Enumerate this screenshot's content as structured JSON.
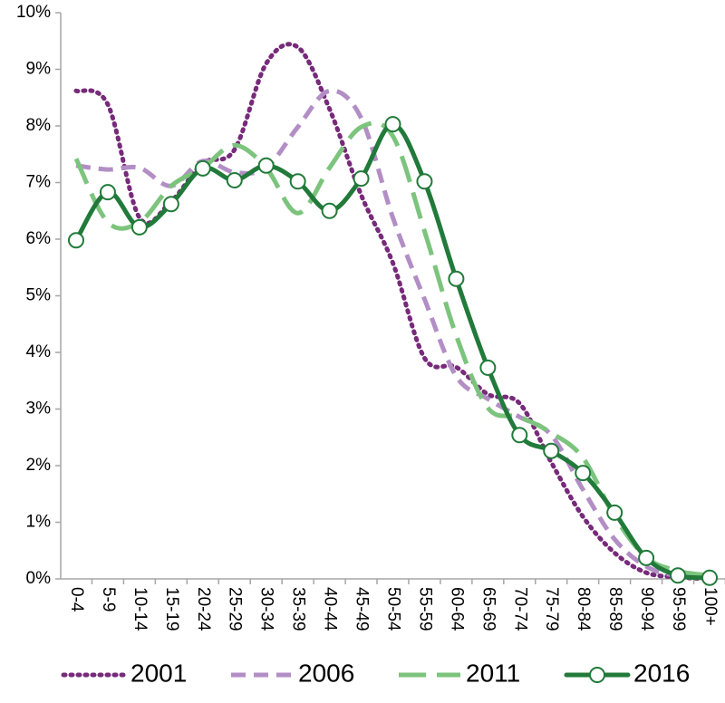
{
  "chart_data": {
    "type": "line",
    "categories": [
      "0-4",
      "5-9",
      "10-14",
      "15-19",
      "20-24",
      "25-29",
      "30-34",
      "35-39",
      "40-44",
      "45-49",
      "50-54",
      "55-59",
      "60-64",
      "65-69",
      "70-74",
      "75-79",
      "80-84",
      "85-89",
      "90-94",
      "95-99",
      "100+"
    ],
    "series": [
      {
        "name": "2001",
        "color": "#772a7a",
        "line_style": "dotted",
        "values": [
          8.62,
          8.38,
          6.38,
          6.67,
          7.34,
          7.58,
          9.1,
          9.39,
          8.3,
          6.78,
          5.58,
          3.9,
          3.74,
          3.26,
          3.1,
          2.06,
          1.1,
          0.46,
          0.11,
          0.03,
          0.0
        ]
      },
      {
        "name": "2006",
        "color": "#b28ec5",
        "line_style": "dashed",
        "values": [
          7.3,
          7.23,
          7.26,
          6.94,
          7.38,
          7.18,
          7.26,
          7.98,
          8.62,
          8.14,
          6.38,
          4.94,
          3.58,
          3.18,
          2.86,
          2.54,
          1.58,
          0.7,
          0.22,
          0.05,
          0.02
        ]
      },
      {
        "name": "2011",
        "color": "#7cc47d",
        "line_style": "long-dashed",
        "values": [
          7.42,
          6.3,
          6.3,
          6.94,
          7.26,
          7.66,
          7.26,
          6.46,
          7.26,
          7.98,
          7.82,
          6.14,
          4.3,
          3.02,
          2.86,
          2.58,
          2.14,
          1.1,
          0.38,
          0.14,
          0.06
        ]
      },
      {
        "name": "2016",
        "color": "#217a3a",
        "line_style": "solid",
        "marker": "circle",
        "values": [
          5.98,
          6.83,
          6.21,
          6.62,
          7.25,
          7.04,
          7.3,
          7.02,
          6.5,
          7.07,
          8.03,
          7.02,
          5.3,
          3.73,
          2.54,
          2.26,
          1.87,
          1.17,
          0.37,
          0.06,
          0.02
        ]
      }
    ],
    "ylim": [
      0,
      10
    ],
    "yticks": [
      {
        "value": 0,
        "label": "0%"
      },
      {
        "value": 1,
        "label": "1%"
      },
      {
        "value": 2,
        "label": "2%"
      },
      {
        "value": 3,
        "label": "3%"
      },
      {
        "value": 4,
        "label": "4%"
      },
      {
        "value": 5,
        "label": "5%"
      },
      {
        "value": 6,
        "label": "6%"
      },
      {
        "value": 7,
        "label": "7%"
      },
      {
        "value": 8,
        "label": "8%"
      },
      {
        "value": 9,
        "label": "9%"
      },
      {
        "value": 10,
        "label": "10%"
      }
    ],
    "grid": false,
    "legend": "bottom"
  }
}
